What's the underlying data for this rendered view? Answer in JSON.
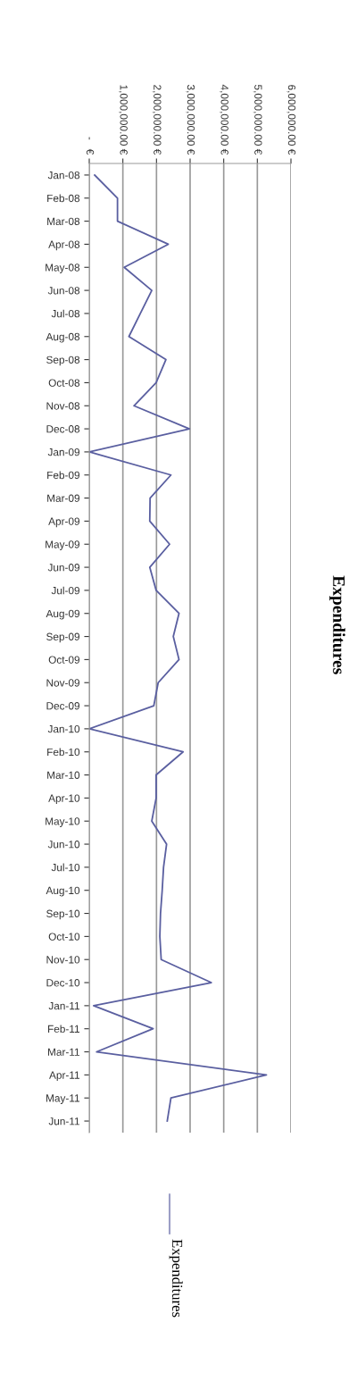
{
  "chart_data": {
    "type": "line",
    "orientation": "horizontal",
    "title": "Expenditures",
    "categories": [
      "Jan-08",
      "Feb-08",
      "Mar-08",
      "Apr-08",
      "May-08",
      "Jun-08",
      "Jul-08",
      "Aug-08",
      "Sep-08",
      "Oct-08",
      "Nov-08",
      "Dec-08",
      "Jan-09",
      "Feb-09",
      "Mar-09",
      "Apr-09",
      "May-09",
      "Jun-09",
      "Jul-09",
      "Aug-09",
      "Sep-09",
      "Oct-09",
      "Nov-09",
      "Dec-09",
      "Jan-10",
      "Feb-10",
      "Mar-10",
      "Apr-10",
      "May-10",
      "Jun-10",
      "Jul-10",
      "Aug-10",
      "Sep-10",
      "Oct-10",
      "Nov-10",
      "Dec-10",
      "Jan-11",
      "Feb-11",
      "Mar-11",
      "Apr-11",
      "May-11",
      "Jun-11"
    ],
    "series": [
      {
        "name": "Expenditures",
        "color": "#5a5fa0",
        "values": [
          160000,
          840000,
          840000,
          2350000,
          1040000,
          1860000,
          1520000,
          1180000,
          2280000,
          1990000,
          1330000,
          2980000,
          0,
          2430000,
          1810000,
          1800000,
          2390000,
          1800000,
          1990000,
          2670000,
          2500000,
          2670000,
          2050000,
          1920000,
          0,
          2790000,
          1990000,
          1990000,
          1860000,
          2300000,
          2210000,
          2170000,
          2120000,
          2100000,
          2140000,
          3630000,
          130000,
          1900000,
          220000,
          5270000,
          2430000,
          2320000
        ]
      }
    ],
    "xlim": [
      0,
      6000000
    ],
    "xticks": [
      {
        "value": 0,
        "label": "-   €"
      },
      {
        "value": 1000000,
        "label": "1,000,000.00 €"
      },
      {
        "value": 2000000,
        "label": "2,000,000.00 €"
      },
      {
        "value": 3000000,
        "label": "3,000,000.00 €"
      },
      {
        "value": 4000000,
        "label": "4,000,000.00 €"
      },
      {
        "value": 5000000,
        "label": "5,000,000.00 €"
      },
      {
        "value": 6000000,
        "label": "6,000,000.00 €"
      }
    ],
    "grid": "x",
    "legend": "bottom",
    "marker": "none",
    "line_style": "solid"
  }
}
